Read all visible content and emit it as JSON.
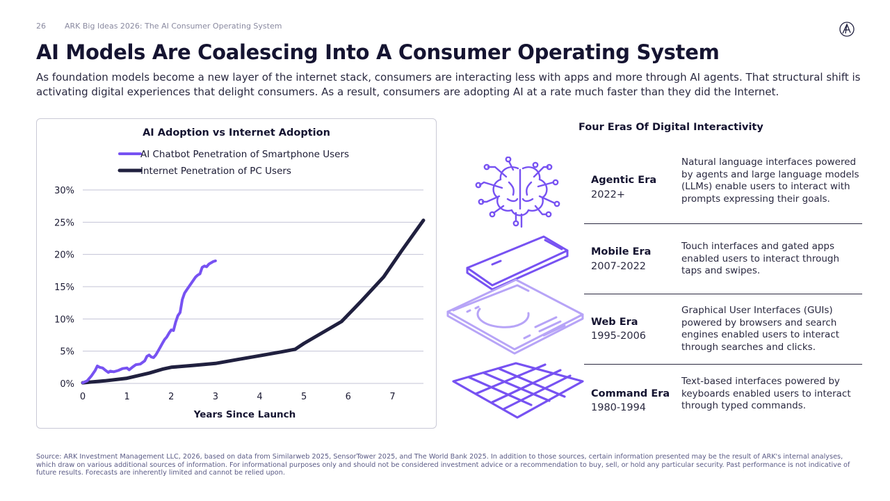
{
  "header": {
    "page_number": "26",
    "source_title": "ARK Big Ideas 2026: The AI Consumer Operating System",
    "logo_icon": "ark-logo-icon"
  },
  "title": "AI Models Are Coalescing Into A Consumer Operating System",
  "subtitle": "As foundation models become a new layer of the internet stack, consumers are interacting less with apps and more through AI agents. That structural shift is activating digital experiences that delight consumers. As a result, consumers are adopting AI at a rate much faster than they did the Internet.",
  "chart_data": {
    "type": "line",
    "title": "AI Adoption vs Internet Adoption",
    "xlabel": "Years Since Launch",
    "ylabel": "",
    "xlim": [
      0,
      7.7
    ],
    "ylim": [
      0,
      30
    ],
    "xticks": [
      0,
      1,
      2,
      3,
      4,
      5,
      6,
      7
    ],
    "xtick_labels": [
      "0",
      "1",
      "2",
      "3",
      "4",
      "5",
      "6",
      "7"
    ],
    "yticks": [
      0,
      5,
      10,
      15,
      20,
      25,
      30
    ],
    "ytick_labels": [
      "0%",
      "5%",
      "10%",
      "15%",
      "20%",
      "25%",
      "30%"
    ],
    "grid": "horizontal",
    "legend": "top",
    "series": [
      {
        "name": "AI Chatbot Penetration of Smartphone Users",
        "color": "#7752f2",
        "x": [
          0,
          0.1,
          0.2,
          0.28,
          0.33,
          0.38,
          0.45,
          0.52,
          0.58,
          0.62,
          0.7,
          0.8,
          0.9,
          1.0,
          1.05,
          1.12,
          1.2,
          1.3,
          1.4,
          1.45,
          1.5,
          1.55,
          1.6,
          1.65,
          1.7,
          1.75,
          1.8,
          1.85,
          1.9,
          1.95,
          2.0,
          2.05,
          2.1,
          2.15,
          2.2,
          2.25,
          2.3,
          2.35,
          2.4,
          2.45,
          2.5,
          2.55,
          2.6,
          2.65,
          2.7,
          2.75,
          2.8,
          2.85,
          2.9,
          2.95,
          3.0
        ],
        "values": [
          0.1,
          0.4,
          1.2,
          2.0,
          2.7,
          2.5,
          2.4,
          2.0,
          1.7,
          1.9,
          1.8,
          2.0,
          2.3,
          2.4,
          2.1,
          2.5,
          2.9,
          3.0,
          3.5,
          4.2,
          4.4,
          4.1,
          4.0,
          4.4,
          5.0,
          5.6,
          6.2,
          6.8,
          7.2,
          7.8,
          8.3,
          8.2,
          9.5,
          10.5,
          11.0,
          13.0,
          14.0,
          14.5,
          15.0,
          15.5,
          16.0,
          16.5,
          16.8,
          17.0,
          18.0,
          18.2,
          18.1,
          18.5,
          18.7,
          18.9,
          19.0
        ],
        "line_width": 4
      },
      {
        "name": "Internet Penetration of PC Users",
        "color": "#20203f",
        "x": [
          0,
          0.5,
          1.0,
          1.5,
          1.8,
          2.0,
          2.5,
          3.0,
          3.5,
          4.0,
          4.5,
          4.8,
          5.0,
          5.5,
          5.85,
          6.3,
          6.8,
          7.2,
          7.7
        ],
        "values": [
          0.1,
          0.4,
          0.8,
          1.6,
          2.2,
          2.5,
          2.8,
          3.1,
          3.7,
          4.3,
          4.9,
          5.3,
          6.2,
          8.2,
          9.6,
          12.8,
          16.5,
          20.5,
          25.3
        ],
        "line_width": 5
      }
    ]
  },
  "eras": {
    "title": "Four Eras Of Digital Interactivity",
    "items": [
      {
        "name": "Agentic Era",
        "years": "2022+",
        "description": "Natural language interfaces powered by agents and large language models (LLMs) enable users to interact with prompts expressing their goals.",
        "icon": "brain-circuit-icon"
      },
      {
        "name": "Mobile Era",
        "years": "2007-2022",
        "description": "Touch interfaces and gated apps enabled users to interact through taps and swipes.",
        "icon": "smartphone-icon"
      },
      {
        "name": "Web Era",
        "years": "1995-2006",
        "description": "Graphical User Interfaces (GUIs) powered by browsers and search engines enabled users to interact through searches and clicks.",
        "icon": "browser-window-icon"
      },
      {
        "name": "Command Era",
        "years": "1980-1994",
        "description": "Text-based interfaces powered by keyboards enabled users to interact through typed commands.",
        "icon": "keyboard-grid-icon"
      }
    ]
  },
  "colors": {
    "accent_purple": "#7752f2",
    "light_purple": "#b7a4f7",
    "navy": "#20203f"
  },
  "footnote": "Source: ARK Investment Management LLC, 2026, based on data from Similarweb 2025, SensorTower 2025, and The World Bank 2025. In addition to those sources, certain information presented may be the result of ARK's internal analyses, which draw on various additional sources of information. For informational purposes only and should not be considered investment advice or a recommendation to buy, sell, or hold any particular security. Past performance is not indicative of future results. Forecasts are inherently limited and cannot be relied upon."
}
